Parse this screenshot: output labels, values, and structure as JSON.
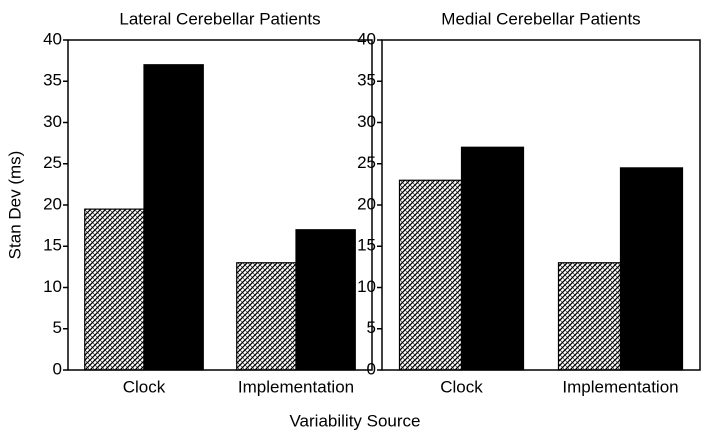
{
  "x_label": "Variability Source",
  "chart_data": [
    {
      "type": "bar",
      "title": "Lateral Cerebellar Patients",
      "y_label": "Stan Dev (ms)",
      "categories": [
        "Clock",
        "Implementation"
      ],
      "series": [
        {
          "color": "#000000",
          "pattern": "hatch",
          "values": [
            19.5,
            13
          ]
        },
        {
          "color": "#000000",
          "values": [
            37,
            17
          ]
        }
      ],
      "ylim": [
        0,
        40
      ],
      "yticks": [
        0,
        5,
        10,
        15,
        20,
        25,
        30,
        35,
        40
      ]
    },
    {
      "type": "bar",
      "title": "Medial Cerebellar Patients",
      "categories": [
        "Clock",
        "Implementation"
      ],
      "series": [
        {
          "color": "#000000",
          "pattern": "hatch",
          "values": [
            23,
            13
          ]
        },
        {
          "color": "#000000",
          "values": [
            27,
            24.5
          ]
        }
      ],
      "ylim": [
        0,
        40
      ],
      "yticks": [
        0,
        5,
        10,
        15,
        20,
        25,
        30,
        35,
        40
      ]
    }
  ]
}
